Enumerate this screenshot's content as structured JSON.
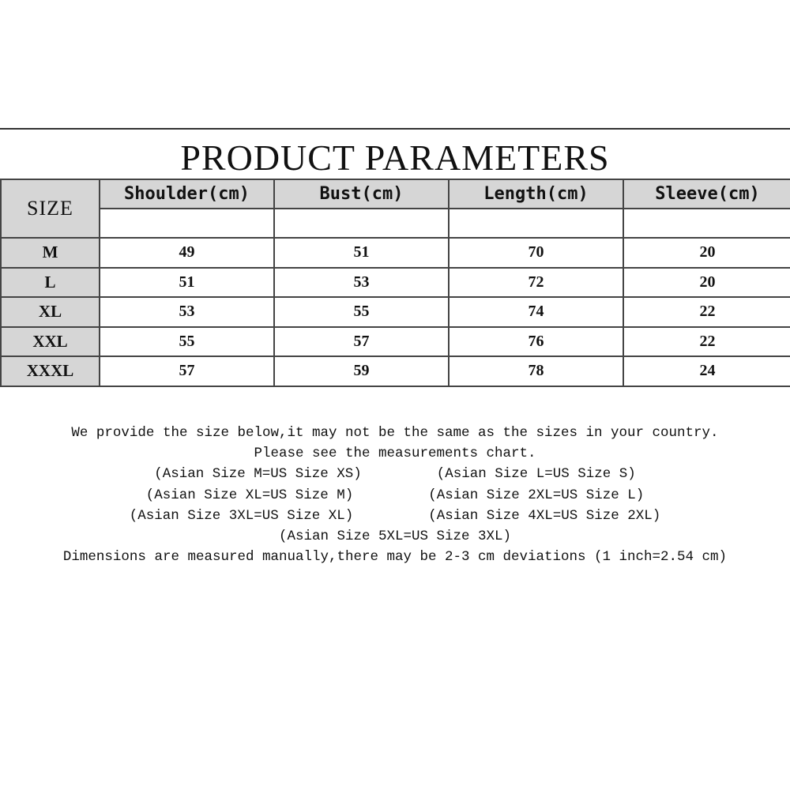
{
  "title": "PRODUCT PARAMETERS",
  "table": {
    "size_header": "SIZE",
    "columns": [
      "Shoulder(cm)",
      "Bust(cm)",
      "Length(cm)",
      "Sleeve(cm)"
    ],
    "rows": [
      {
        "size": "M",
        "values": [
          "49",
          "51",
          "70",
          "20"
        ]
      },
      {
        "size": "L",
        "values": [
          "51",
          "53",
          "72",
          "20"
        ]
      },
      {
        "size": "XL",
        "values": [
          "53",
          "55",
          "74",
          "22"
        ]
      },
      {
        "size": "XXL",
        "values": [
          "55",
          "57",
          "76",
          "22"
        ]
      },
      {
        "size": "XXXL",
        "values": [
          "57",
          "59",
          "78",
          "24"
        ]
      }
    ]
  },
  "notes": {
    "line1": "We provide the size below,it may not be the same as the sizes in your country.",
    "line2": "Please see the measurements chart.",
    "pairs": [
      [
        "(Asian Size M=US Size XS)",
        "(Asian Size L=US Size S)"
      ],
      [
        "(Asian Size XL=US Size M)",
        "(Asian Size 2XL=US Size L)"
      ],
      [
        "(Asian Size 3XL=US Size XL)",
        "(Asian Size 4XL=US Size 2XL)"
      ]
    ],
    "line6": "(Asian Size 5XL=US Size 3XL)",
    "line7": "Dimensions are measured manually,there may be 2-3 cm deviations (1 inch=2.54 cm)"
  },
  "colors": {
    "header_bg": "#d6d6d6",
    "border": "#444444"
  }
}
